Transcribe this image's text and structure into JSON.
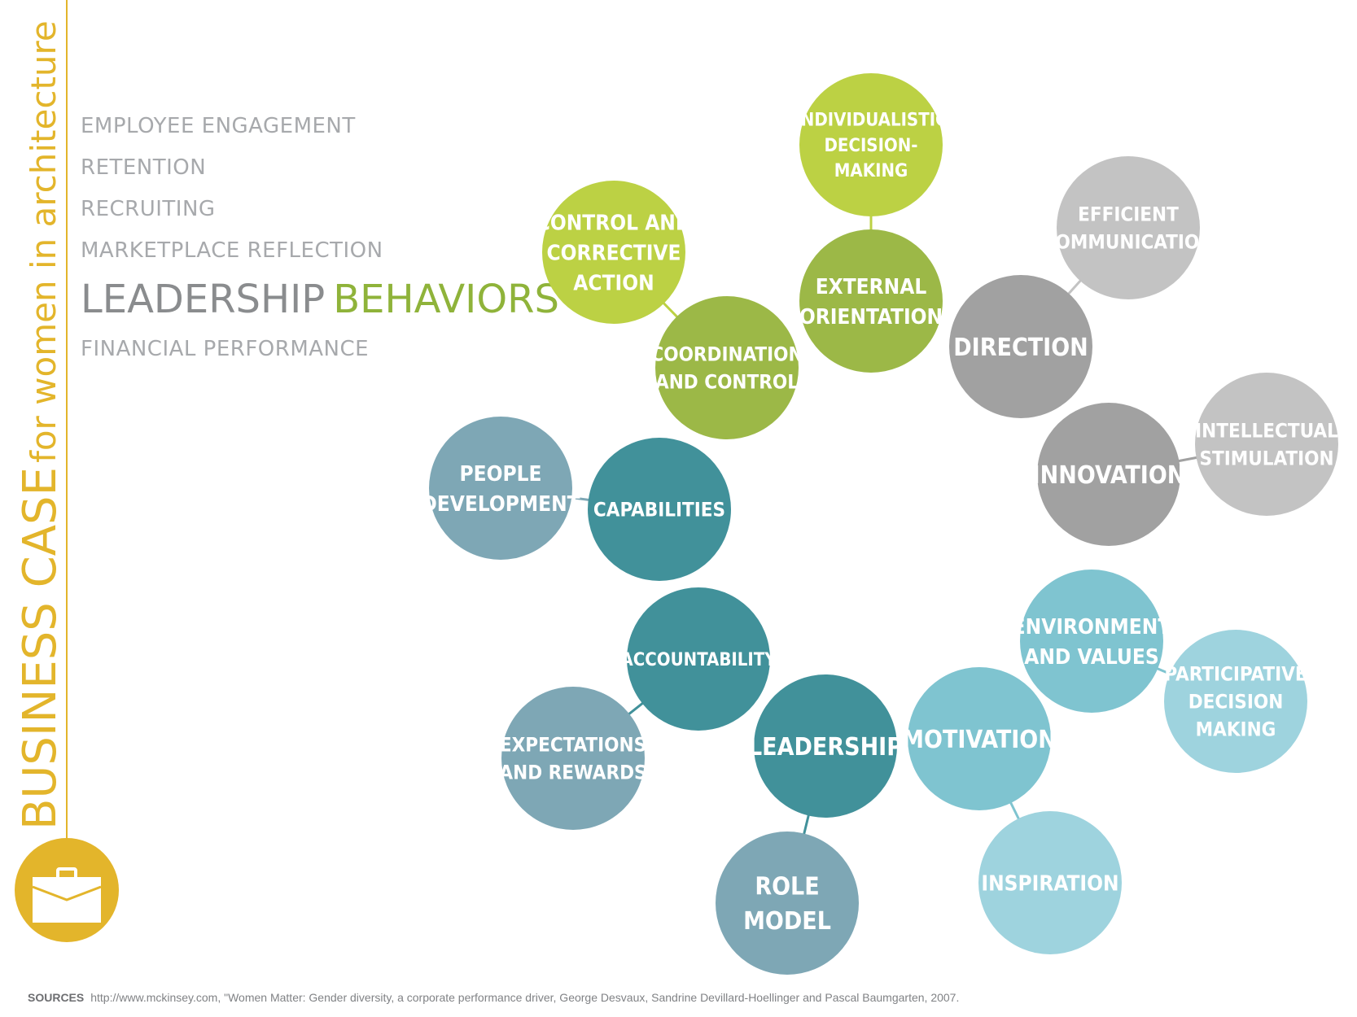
{
  "sidebar": {
    "title_main": "BUSINESS CASE",
    "title_sub": "for women in architecture",
    "icon": "briefcase-icon",
    "accent_color": "#e3b52b"
  },
  "menu": {
    "items_top": [
      "EMPLOYEE ENGAGEMENT",
      "RETENTION",
      "RECRUITING",
      "MARKETPLACE REFLECTION"
    ],
    "active_part1": "LEADERSHIP",
    "active_part2": "BEHAVIORS",
    "items_bottom": [
      "FINANCIAL PERFORMANCE"
    ]
  },
  "diagram": {
    "nodes": [
      {
        "id": "individualistic",
        "lines": [
          "INDIVIDUALISTIC",
          "DECISION-",
          "MAKING"
        ],
        "color": "#bcd144"
      },
      {
        "id": "external",
        "lines": [
          "EXTERNAL",
          "ORIENTATION"
        ],
        "color": "#9cb847"
      },
      {
        "id": "control",
        "lines": [
          "CONTROL AND",
          "CORRECTIVE",
          "ACTION"
        ],
        "color": "#bcd144"
      },
      {
        "id": "coordination",
        "lines": [
          "COORDINATION",
          "AND CONTROL"
        ],
        "color": "#9cb847"
      },
      {
        "id": "efficient",
        "lines": [
          "EFFICIENT",
          "COMMUNICATION"
        ],
        "color": "#c3c3c3"
      },
      {
        "id": "direction",
        "lines": [
          "DIRECTION"
        ],
        "color": "#a1a1a1"
      },
      {
        "id": "innovation",
        "lines": [
          "INNOVATION"
        ],
        "color": "#a1a1a1"
      },
      {
        "id": "intellectual",
        "lines": [
          "INTELLECTUAL",
          "STIMULATION"
        ],
        "color": "#c3c3c3"
      },
      {
        "id": "people",
        "lines": [
          "PEOPLE",
          "DEVELOPMENT"
        ],
        "color": "#7ea7b5"
      },
      {
        "id": "capabilities",
        "lines": [
          "CAPABILITIES"
        ],
        "color": "#41919a"
      },
      {
        "id": "accountability",
        "lines": [
          "ACCOUNTABILITY"
        ],
        "color": "#41919a"
      },
      {
        "id": "expectations",
        "lines": [
          "EXPECTATIONS",
          "AND REWARDS"
        ],
        "color": "#7ea7b5"
      },
      {
        "id": "leadership",
        "lines": [
          "LEADERSHIP"
        ],
        "color": "#41919a"
      },
      {
        "id": "role",
        "lines": [
          "ROLE",
          "MODEL"
        ],
        "color": "#7ea7b5"
      },
      {
        "id": "environment",
        "lines": [
          "ENVIRONMENT",
          "AND VALUES"
        ],
        "color": "#7fc4d0"
      },
      {
        "id": "participative",
        "lines": [
          "PARTICIPATIVE",
          "DECISION",
          "MAKING"
        ],
        "color": "#9ed3de"
      },
      {
        "id": "motivation",
        "lines": [
          "MOTIVATION"
        ],
        "color": "#7fc4d0"
      },
      {
        "id": "inspiration",
        "lines": [
          "INSPIRATION"
        ],
        "color": "#9ed3de"
      }
    ],
    "links": [
      [
        "individualistic",
        "external"
      ],
      [
        "control",
        "coordination"
      ],
      [
        "efficient",
        "direction"
      ],
      [
        "innovation",
        "intellectual"
      ],
      [
        "people",
        "capabilities"
      ],
      [
        "accountability",
        "expectations"
      ],
      [
        "leadership",
        "role"
      ],
      [
        "environment",
        "participative"
      ],
      [
        "motivation",
        "inspiration"
      ]
    ]
  },
  "sources": {
    "label": "SOURCES",
    "text": "http://www.mckinsey.com, \"Women Matter: Gender diversity, a corporate performance driver,  George Desvaux, Sandrine Devillard-Hoellinger and Pascal Baumgarten, 2007."
  }
}
